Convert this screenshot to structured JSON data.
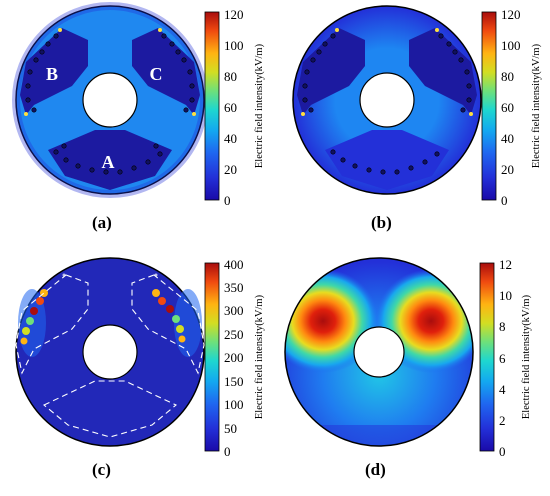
{
  "colorbar_title": "Electric field intensity(kV/m)",
  "colors": {
    "background": "#ffffff",
    "outline": "#000000",
    "dashed": "#ffffff",
    "stops": [
      "#1a0aa8",
      "#2330d8",
      "#1f66f0",
      "#13a8f0",
      "#1ed7cf",
      "#6ee07a",
      "#d2de22",
      "#ffb412",
      "#f04a10",
      "#a90d0d"
    ]
  },
  "panels": [
    {
      "id": "a",
      "caption": "(a)",
      "sector_labels": [
        "B",
        "C",
        "A"
      ],
      "colorbar_ticks": [
        "0",
        "20",
        "40",
        "60",
        "80",
        "100",
        "120"
      ]
    },
    {
      "id": "b",
      "caption": "(b)",
      "colorbar_ticks": [
        "0",
        "20",
        "40",
        "60",
        "80",
        "100",
        "120"
      ]
    },
    {
      "id": "c",
      "caption": "(c)",
      "colorbar_ticks": [
        "0",
        "50",
        "100",
        "150",
        "200",
        "250",
        "300",
        "350",
        "400"
      ]
    },
    {
      "id": "d",
      "caption": "(d)",
      "colorbar_ticks": [
        "0",
        "2",
        "4",
        "6",
        "8",
        "10",
        "12"
      ]
    }
  ]
}
